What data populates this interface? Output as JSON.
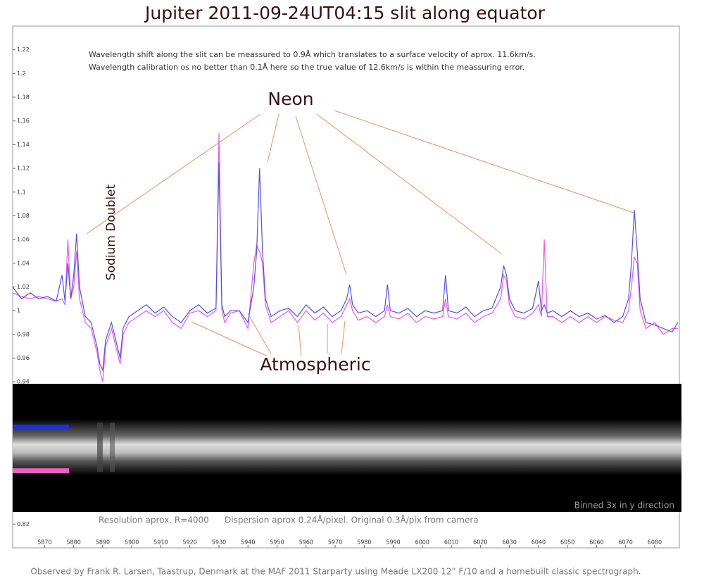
{
  "chart_data": {
    "type": "line",
    "title": "Jupiter 2011-09-24UT04:15 slit along equator",
    "notes": [
      "Wavelength shift along the slit can be meassured to 0.9Å which translates to a surface velocity of aprox. 11.6km/s.",
      "Wavelength calibration os no better than 0.1Å here so the true value of 12.6km/s is within the meassuring error."
    ],
    "annotations": [
      "Neon",
      "Atmospheric",
      "Sodium Doublet"
    ],
    "image_notes": [
      "Resolution aprox. R=4000",
      "Dispersion aprox 0.24Å/pixel. Original 0.3Å/pix from camera",
      "Binned 3x in y direction"
    ],
    "footer": "Observed by Frank R. Larsen, Taastrup, Denmark at the MAF 2011 Starparty using Meade LX200 12” F/10 and a homebuilt classic spectrograph.",
    "x": [
      5859,
      5862,
      5865,
      5868,
      5871,
      5874,
      5876,
      5877,
      5878,
      5879,
      5880,
      5881,
      5882,
      5884,
      5886,
      5888,
      5889,
      5890,
      5891,
      5893,
      5895,
      5896,
      5897,
      5899,
      5902,
      5905,
      5908,
      5911,
      5914,
      5917,
      5920,
      5923,
      5926,
      5929,
      5930,
      5931,
      5932,
      5934,
      5937,
      5940,
      5942,
      5943,
      5944,
      5945,
      5946,
      5948,
      5951,
      5954,
      5957,
      5960,
      5963,
      5966,
      5969,
      5972,
      5974,
      5975,
      5976,
      5978,
      5981,
      5984,
      5987,
      5988,
      5989,
      5992,
      5995,
      5998,
      6001,
      6004,
      6007,
      6008,
      6009,
      6012,
      6015,
      6018,
      6021,
      6024,
      6027,
      6028,
      6029,
      6030,
      6032,
      6035,
      6038,
      6040,
      6041,
      6042,
      6043,
      6045,
      6048,
      6051,
      6054,
      6057,
      6060,
      6063,
      6066,
      6069,
      6071,
      6072,
      6073,
      6074,
      6075,
      6077,
      6080,
      6083,
      6086,
      6088
    ],
    "series": [
      {
        "color": "#5050e8",
        "values": [
          1.02,
          1.01,
          1.015,
          1.01,
          1.012,
          1.008,
          1.03,
          1.008,
          1.04,
          1.01,
          1.03,
          1.065,
          1.02,
          0.995,
          0.99,
          0.97,
          0.955,
          0.95,
          0.975,
          0.99,
          0.97,
          0.96,
          0.985,
          0.995,
          1.0,
          1.005,
          0.998,
          1.003,
          0.995,
          0.99,
          1.0,
          1.005,
          0.998,
          1.002,
          1.125,
          1.005,
          0.995,
          1.0,
          1.0,
          0.99,
          1.02,
          1.05,
          1.12,
          1.05,
          1.01,
          0.995,
          1.0,
          1.002,
          0.995,
          1.005,
          0.998,
          1.003,
          0.995,
          1.0,
          1.01,
          1.022,
          1.005,
          0.998,
          1.0,
          0.995,
          1.0,
          1.022,
          1.0,
          0.998,
          1.002,
          0.995,
          1.0,
          0.998,
          1.0,
          1.03,
          1.0,
          0.998,
          1.003,
          0.995,
          1.0,
          1.002,
          1.02,
          1.038,
          1.03,
          1.01,
          1.0,
          0.998,
          1.002,
          1.025,
          1.0,
          1.005,
          0.998,
          1.0,
          0.995,
          1.0,
          0.995,
          0.998,
          0.993,
          0.996,
          0.99,
          0.995,
          1.01,
          1.04,
          1.085,
          1.05,
          1.01,
          0.99,
          0.988,
          0.985,
          0.982,
          0.99
        ]
      },
      {
        "color": "#ee55ee",
        "values": [
          1.015,
          1.012,
          1.01,
          1.012,
          1.01,
          1.008,
          1.01,
          1.005,
          1.06,
          1.01,
          1.02,
          1.05,
          1.01,
          0.99,
          0.985,
          0.965,
          0.95,
          0.94,
          0.97,
          0.985,
          0.965,
          0.955,
          0.98,
          0.99,
          0.995,
          1.0,
          0.995,
          1.0,
          0.99,
          0.985,
          0.998,
          1.0,
          0.995,
          1.0,
          1.15,
          1.0,
          0.99,
          0.998,
          1.0,
          0.985,
          1.04,
          1.055,
          1.05,
          1.04,
          1.005,
          0.99,
          0.995,
          1.0,
          0.99,
          1.0,
          0.992,
          0.998,
          0.99,
          0.995,
          1.005,
          1.01,
          1.0,
          0.992,
          0.995,
          0.99,
          0.995,
          1.005,
          0.995,
          0.993,
          0.998,
          0.99,
          0.995,
          0.993,
          0.995,
          1.01,
          0.995,
          0.993,
          0.998,
          0.99,
          0.995,
          0.998,
          1.01,
          1.03,
          1.025,
          1.005,
          0.995,
          0.993,
          0.998,
          1.005,
          0.995,
          1.06,
          0.995,
          0.995,
          0.99,
          0.995,
          0.99,
          0.995,
          0.99,
          0.995,
          0.992,
          0.99,
          1.0,
          1.02,
          1.045,
          1.04,
          1.0,
          0.985,
          0.99,
          0.98,
          0.985,
          0.985
        ]
      }
    ],
    "xlim": [
      5859,
      6088.5
    ],
    "ylim": [
      0.8,
      1.24
    ],
    "xticks": [
      5870,
      5880,
      5890,
      5900,
      5910,
      5920,
      5930,
      5940,
      5950,
      5960,
      5970,
      5980,
      5990,
      6000,
      6010,
      6020,
      6030,
      6040,
      6050,
      6060,
      6070,
      6080
    ],
    "yticks": [
      0.82,
      0.94,
      0.96,
      0.98,
      1,
      1.02,
      1.04,
      1.06,
      1.08,
      1.1,
      1.12,
      1.14,
      1.16,
      1.18,
      1.2,
      1.22
    ]
  }
}
